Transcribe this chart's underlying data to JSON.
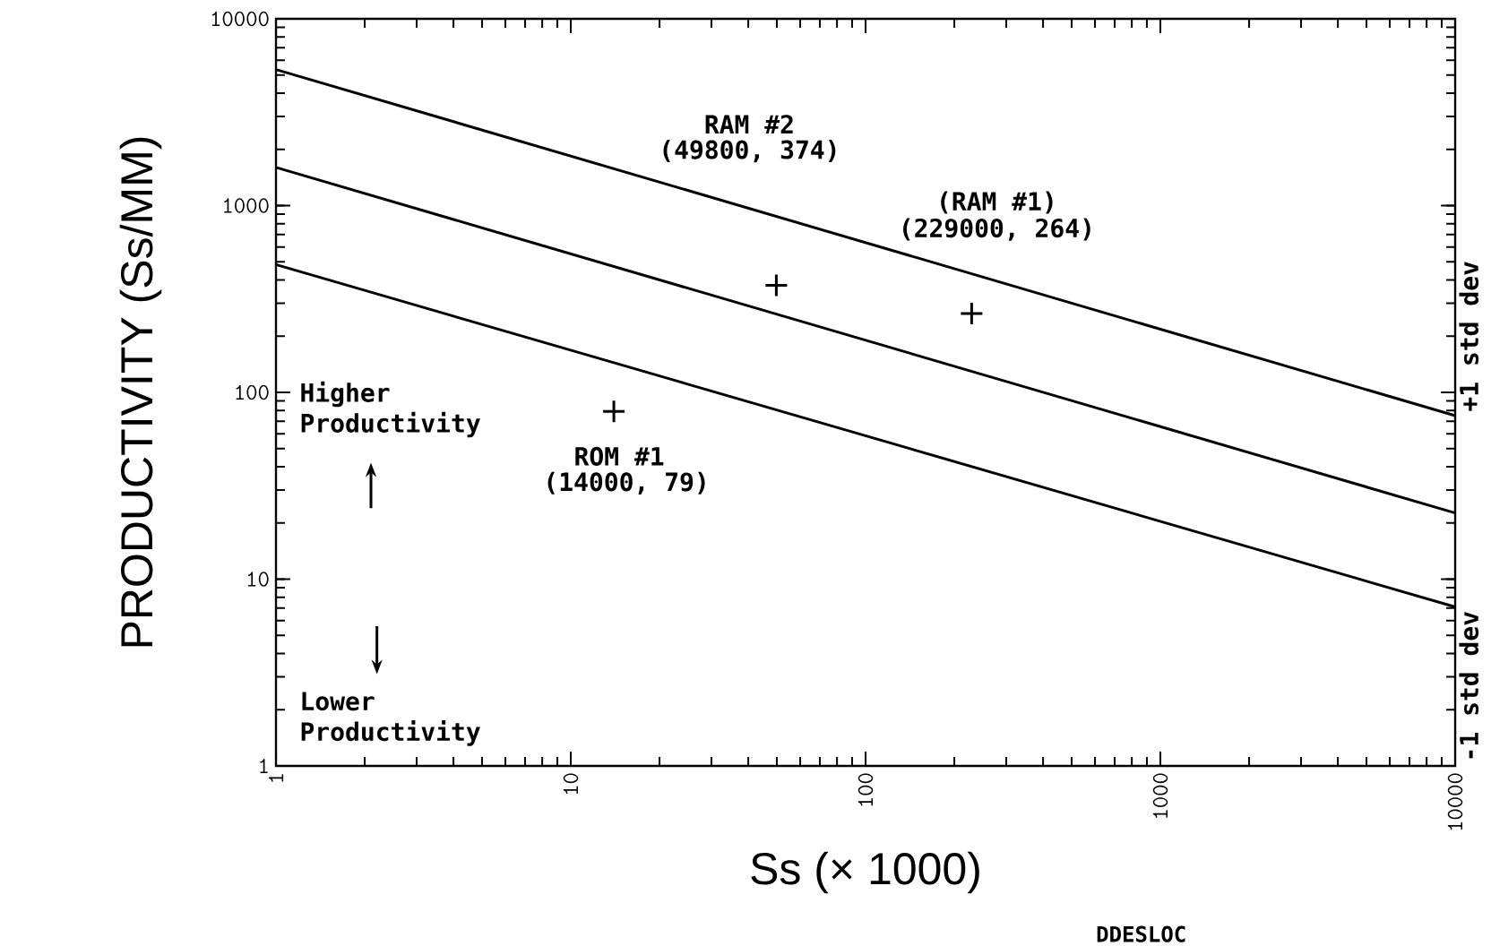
{
  "chart_data": {
    "type": "line",
    "xlabel": "Ss (× 1000)",
    "ylabel": "PRODUCTIVITY (Ss/MM)",
    "log": "xy",
    "xlim": [
      1,
      10000
    ],
    "ylim": [
      1,
      10000
    ],
    "xticks": [
      1,
      10,
      100,
      1000,
      10000
    ],
    "yticks": [
      1,
      10,
      100,
      1000,
      10000
    ],
    "grid": false,
    "legend": "right",
    "line_style": "solid",
    "marker": "none",
    "series": [
      {
        "name": "+1 std dev",
        "color": "#000000",
        "x": [
          1,
          10000
        ],
        "values": [
          5350,
          75
        ]
      },
      {
        "color": "#000000",
        "x": [
          1,
          10000
        ],
        "values": [
          1600,
          22.6
        ]
      },
      {
        "name": "-1 std dev",
        "color": "#000000",
        "x": [
          1,
          10000
        ],
        "values": [
          483,
          7.1
        ]
      },
      {
        "type": "scatter",
        "marker": "cross",
        "color": "#000000",
        "x": [
          49.8,
          229,
          14
        ],
        "values": [
          374,
          264,
          79
        ]
      }
    ],
    "annotations": [
      "RAM #2",
      "(49800, 374)",
      "(RAM #1)",
      "(229000, 264)",
      "ROM #1",
      "(14000, 79)",
      "Higher Productivity",
      "Lower Productivity",
      "DDESLOC"
    ]
  }
}
